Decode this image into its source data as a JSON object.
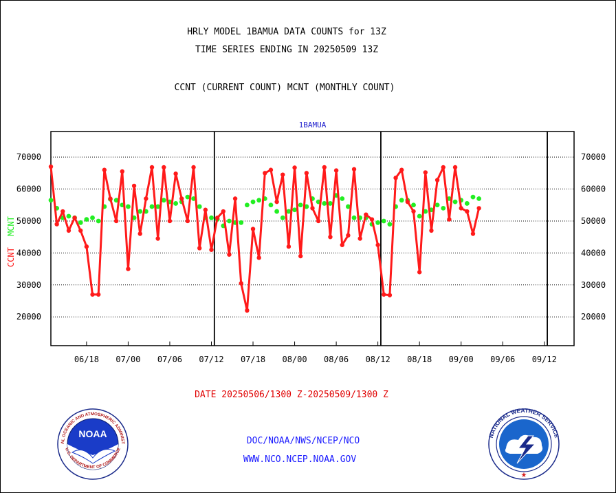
{
  "header": {
    "title_line1": "HRLY MODEL 1BAMUA DATA COUNTS for 13Z",
    "title_line2": "TIME SERIES ENDING IN 20250509 13Z",
    "subtitle": "CCNT (CURRENT COUNT) MCNT (MONTHLY COUNT)"
  },
  "footer": {
    "date_range": "DATE 20250506/1300 Z-20250509/1300 Z",
    "org_line": "DOC/NOAA/NWS/NCEP/NCO",
    "url_line": "WWW.NCO.NCEP.NOAA.GOV"
  },
  "logos": {
    "noaa_text": "NOAA",
    "noaa_ring": "NATIONAL OCEANIC AND ATMOSPHERIC ADMINISTRATION",
    "noaa_bottom": "U.S. DEPARTMENT OF COMMERCE",
    "nws_ring": "NATIONAL WEATHER SERVICE"
  },
  "chart_data": {
    "type": "line",
    "title": "1BAMUA",
    "ylabel_left_red": "CCNT",
    "ylabel_left_green": "MCNT",
    "ylim": [
      11000,
      78000
    ],
    "yticks": [
      20000,
      30000,
      40000,
      50000,
      60000,
      70000
    ],
    "ytick_labels": [
      "20000",
      "30000",
      "40000",
      "50000",
      "60000",
      "70000"
    ],
    "xlim": [
      0,
      88
    ],
    "xticks": [
      6,
      13,
      20,
      27,
      34,
      41,
      48,
      55,
      62,
      69,
      76,
      83
    ],
    "xtick_labels": [
      "06/18",
      "07/00",
      "07/06",
      "07/12",
      "07/18",
      "08/00",
      "08/06",
      "08/12",
      "08/18",
      "09/00",
      "09/06",
      "09/12"
    ],
    "day_boundaries": [
      27.5,
      55.5,
      83.5
    ],
    "grid": true,
    "colors": {
      "ccnt": "#ff1a1a",
      "mcnt": "#22ee22",
      "title": "#1a1acc",
      "axes": "#000000"
    },
    "series": [
      {
        "name": "CCNT",
        "values": [
          67000,
          49000,
          53000,
          47000,
          51000,
          47000,
          42000,
          27000,
          27000,
          66000,
          57000,
          50000,
          65500,
          35000,
          61000,
          46000,
          57000,
          66800,
          44500,
          66800,
          50000,
          64800,
          57000,
          50000,
          66800,
          41500,
          53500,
          41000,
          51000,
          53000,
          39500,
          57000,
          30500,
          22000,
          47500,
          38500,
          65000,
          66000,
          56000,
          64500,
          42000,
          66700,
          39000,
          65000,
          54000,
          50000,
          66800,
          45000,
          65800,
          42500,
          45500,
          66200,
          44500,
          52000,
          50500,
          42500,
          27000,
          26800,
          63500,
          66000,
          56000,
          53000,
          34000,
          65200,
          47000,
          62800,
          66800,
          50500,
          66800,
          54000,
          53000,
          46000,
          54000
        ]
      },
      {
        "name": "MCNT",
        "values": [
          56500,
          54000,
          51000,
          51500,
          51000,
          49500,
          50500,
          51000,
          50000,
          54500,
          56800,
          56500,
          55000,
          54500,
          51000,
          53000,
          53000,
          54500,
          54500,
          56500,
          56000,
          55500,
          56000,
          57500,
          57000,
          54500,
          51000,
          51000,
          50500,
          48500,
          50000,
          49500,
          49500,
          55000,
          56000,
          56500,
          57000,
          55000,
          53000,
          51000,
          53000,
          53500,
          55000,
          54500,
          57000,
          56000,
          55500,
          55500,
          58000,
          57000,
          54500,
          51000,
          51000,
          51000,
          49000,
          49500,
          50000,
          49000,
          54500,
          56500,
          56500,
          55000,
          51500,
          53000,
          53500,
          55000,
          54000,
          57000,
          56000,
          56500,
          55500,
          57500,
          57000
        ]
      }
    ]
  }
}
